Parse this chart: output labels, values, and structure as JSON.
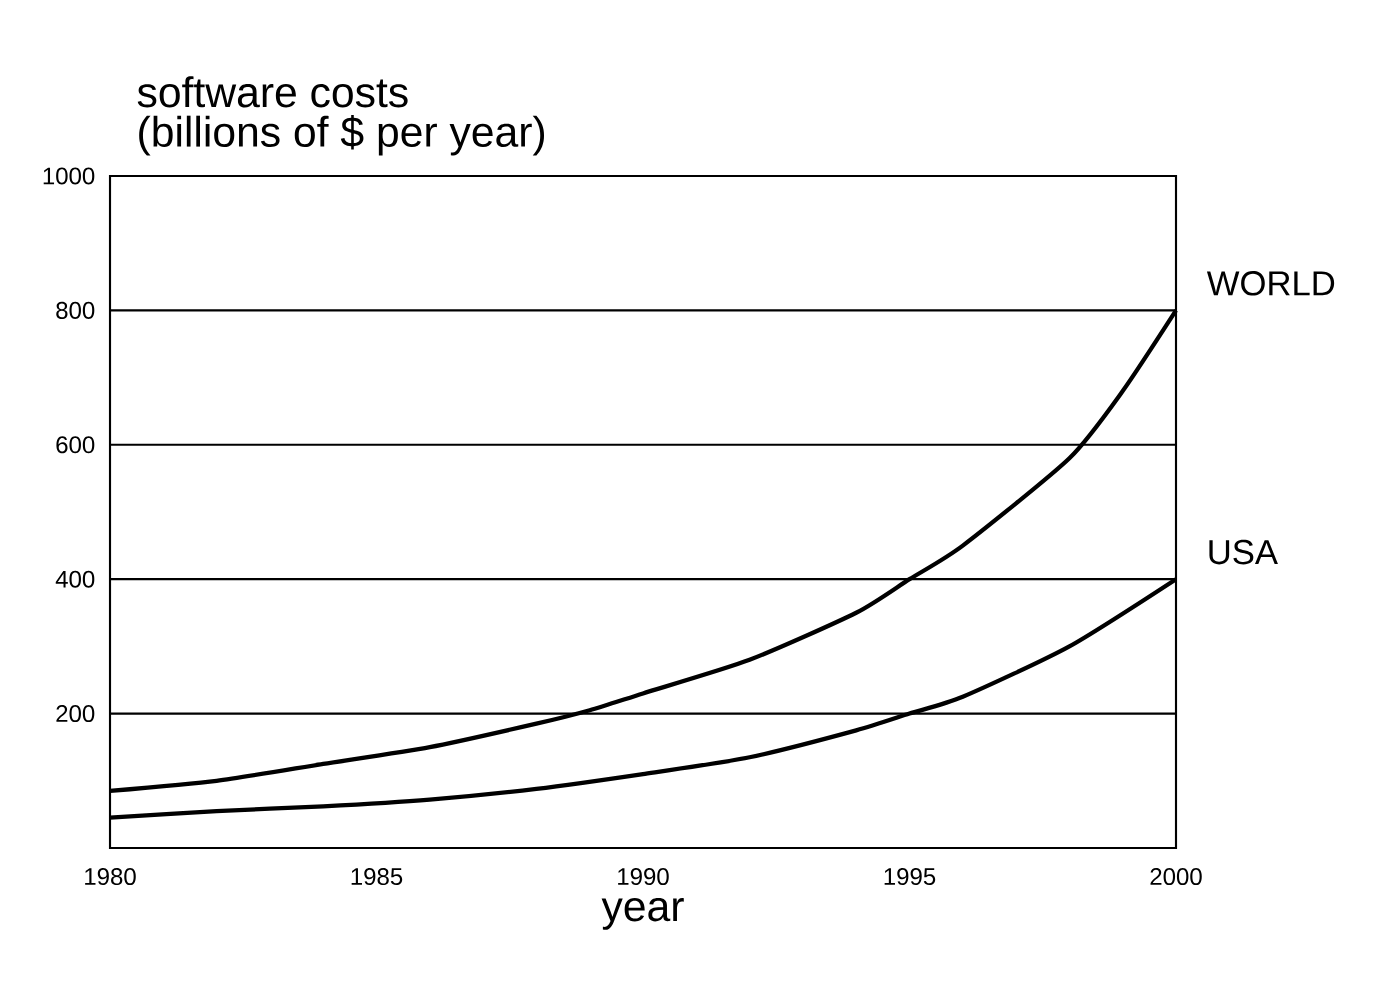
{
  "chart_data": {
    "type": "line",
    "title": "software costs",
    "ylabel": "(billions of $ per year)",
    "xlabel": "year",
    "series": [
      {
        "name": "WORLD",
        "color": "#000000",
        "x": [
          1980,
          1982,
          1984,
          1986,
          1988,
          1989,
          1990,
          1992,
          1994,
          1995,
          1996,
          1998,
          1999,
          2000
        ],
        "values": [
          85,
          100,
          125,
          150,
          185,
          205,
          230,
          280,
          350,
          400,
          450,
          580,
          680,
          800
        ]
      },
      {
        "name": "USA",
        "color": "#000000",
        "x": [
          1980,
          1982,
          1984,
          1986,
          1988,
          1990,
          1992,
          1994,
          1995,
          1996,
          1998,
          2000
        ],
        "values": [
          45,
          55,
          62,
          72,
          88,
          110,
          135,
          175,
          200,
          225,
          300,
          400
        ]
      }
    ],
    "xlim": [
      1980,
      2000
    ],
    "xticks": [
      1980,
      1985,
      1990,
      1995,
      2000
    ],
    "ylim": [
      0,
      1000
    ],
    "yticks": [
      200,
      400,
      600,
      800,
      1000
    ],
    "grid": "y",
    "legend": false,
    "marker": "none",
    "line_style": "solid"
  }
}
